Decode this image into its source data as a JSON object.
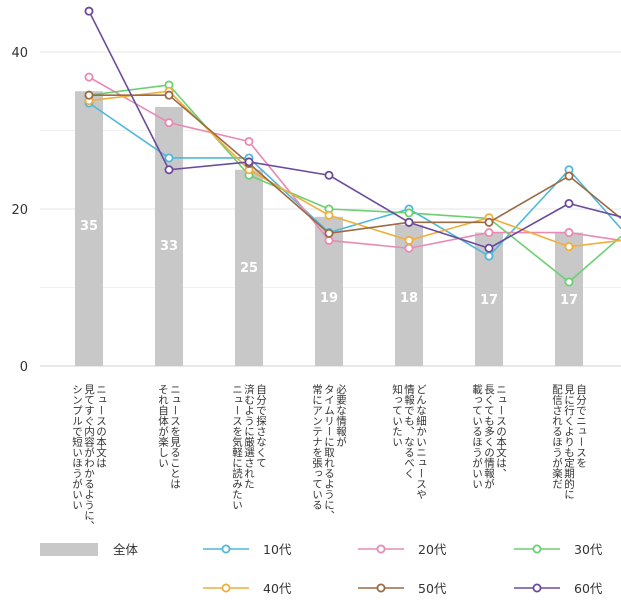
{
  "chart_data": {
    "type": "bar",
    "title": "",
    "xlabel": "",
    "ylabel": "",
    "ylim": [
      0,
      44
    ],
    "yticks": [
      0,
      20,
      40
    ],
    "grid": true,
    "legend_position": "bottom",
    "categories": [
      [
        "ニュースの本文は",
        "見てすぐ内容がわかるように、",
        "シンプルで短いほうがいい"
      ],
      [
        "ニュースを見ることは",
        "それ自体が楽しい"
      ],
      [
        "自分で探さなくて",
        "済むように厳選された",
        "ニュースを気軽に読みたい"
      ],
      [
        "必要な情報が",
        "タイムリーに取れるように、",
        "常にアンテナを張っている"
      ],
      [
        "どんな細かいニュースや",
        "情報でも、なるべく",
        "知っていたい"
      ],
      [
        "ニュースの本文は、",
        "長くても多くの情報が",
        "載っているほうがいい"
      ],
      [
        "自分でニュースを",
        "見に行くよりも定期的に",
        "配信されるほうが楽だ"
      ]
    ],
    "bar_series": {
      "name": "全体",
      "color": "#c8c8c8",
      "values": [
        35,
        33,
        25,
        19,
        18,
        17,
        17
      ]
    },
    "series": [
      {
        "name": "10代",
        "color": "#4fb8dc",
        "values": [
          33.5,
          26.5,
          26.5,
          17,
          20,
          14,
          25
        ],
        "end": 17.5
      },
      {
        "name": "20代",
        "color": "#e88ab4",
        "values": [
          36.8,
          31,
          28.6,
          16,
          15,
          17,
          17
        ],
        "end": 16
      },
      {
        "name": "30代",
        "color": "#6ccf72",
        "values": [
          34.5,
          35.8,
          24.3,
          20,
          19.5,
          18.8,
          10.7
        ],
        "end": 16.5
      },
      {
        "name": "40代",
        "color": "#f0ae3c",
        "values": [
          33.8,
          35,
          25,
          19.2,
          16,
          18.9,
          15.2
        ],
        "end": 16
      },
      {
        "name": "50代",
        "color": "#9a6b44",
        "values": [
          34.5,
          34.5,
          25.8,
          16.9,
          18.3,
          18.3,
          24.2
        ],
        "end": 18.8
      },
      {
        "name": "60代",
        "color": "#6b4a9e",
        "values": [
          45.2,
          25,
          26,
          24.3,
          18.3,
          15,
          20.7
        ],
        "end": 19
      }
    ]
  }
}
